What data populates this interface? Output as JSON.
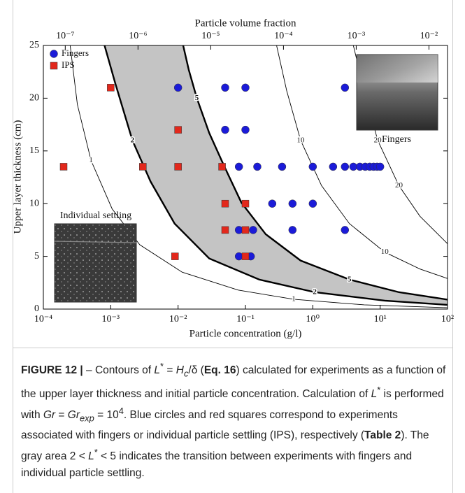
{
  "chart_data": {
    "type": "scatter",
    "x_label": "Particle concentration (g/l)",
    "y_label": "Upper layer thickness (cm)",
    "x2_label": "Particle volume fraction",
    "xscale": "log",
    "xlim": [
      0.0001,
      100
    ],
    "xticks": [
      {
        "value": 0.0001,
        "label": "10⁻⁴"
      },
      {
        "value": 0.001,
        "label": "10⁻³"
      },
      {
        "value": 0.01,
        "label": "10⁻²"
      },
      {
        "value": 0.1,
        "label": "10⁻¹"
      },
      {
        "value": 1,
        "label": "10⁰"
      },
      {
        "value": 10,
        "label": "10¹"
      },
      {
        "value": 100,
        "label": "10²"
      }
    ],
    "x2scale": "log",
    "x2lim": [
      5e-08,
      0.018
    ],
    "x2ticks": [
      {
        "value": 1e-07,
        "label": "10⁻⁷"
      },
      {
        "value": 1e-06,
        "label": "10⁻⁶"
      },
      {
        "value": 1e-05,
        "label": "10⁻⁵"
      },
      {
        "value": 0.0001,
        "label": "10⁻⁴"
      },
      {
        "value": 0.001,
        "label": "10⁻³"
      },
      {
        "value": 0.01,
        "label": "10⁻²"
      }
    ],
    "ylim": [
      0,
      25
    ],
    "yticks": [
      0,
      5,
      10,
      15,
      20,
      25
    ],
    "grid": false,
    "legend": "upper left",
    "series": [
      {
        "name": "Fingers",
        "color": "#1b1bd8",
        "marker": "circle",
        "x": [
          0.01,
          0.05,
          0.1,
          3,
          0.05,
          0.1,
          0.08,
          0.15,
          0.35,
          1,
          2,
          3,
          4,
          5,
          6,
          7,
          8,
          9,
          10,
          0.25,
          0.5,
          1,
          0.08,
          0.13,
          0.5,
          3,
          0.08,
          0.12
        ],
        "values": [
          21,
          21,
          21,
          21,
          17,
          17,
          13.5,
          13.5,
          13.5,
          13.5,
          13.5,
          13.5,
          13.5,
          13.5,
          13.5,
          13.5,
          13.5,
          13.5,
          13.5,
          10,
          10,
          10,
          7.5,
          7.5,
          7.5,
          7.5,
          5,
          5
        ]
      },
      {
        "name": "IPS",
        "color": "#e2281c",
        "marker": "square",
        "x": [
          0.001,
          0.01,
          0.0002,
          0.003,
          0.01,
          0.045,
          0.05,
          0.1,
          0.05,
          0.1,
          0.009,
          0.1
        ],
        "values": [
          21,
          17,
          13.5,
          13.5,
          13.5,
          13.5,
          10,
          10,
          7.5,
          7.5,
          5,
          5
        ]
      }
    ],
    "contours": [
      {
        "label": "1",
        "bold": false,
        "x": [
          0.00025,
          0.00032,
          0.00051,
          0.00105,
          0.0027,
          0.0115,
          0.078,
          0.52,
          5.8,
          100
        ],
        "y": [
          25,
          19.4,
          14.1,
          9.5,
          6.1,
          3.5,
          1.8,
          0.93,
          0.4,
          0.13
        ]
      },
      {
        "label": "2",
        "bold": true,
        "x": [
          0.00081,
          0.00117,
          0.0021,
          0.0039,
          0.0089,
          0.029,
          0.16,
          1.07,
          11.7,
          100
        ],
        "y": [
          25,
          21.4,
          16,
          12.1,
          8.1,
          4.8,
          2.8,
          1.6,
          0.8,
          0.4
        ]
      },
      {
        "label": "5",
        "bold": true,
        "x": [
          0.0119,
          0.0144,
          0.019,
          0.029,
          0.048,
          0.087,
          0.2,
          0.66,
          3.5,
          19,
          100
        ],
        "y": [
          25,
          22.7,
          20,
          16.7,
          13.6,
          10.1,
          7.1,
          4.6,
          2.8,
          1.6,
          0.9
        ]
      },
      {
        "label": "10",
        "bold": false,
        "x": [
          0.29,
          0.41,
          0.66,
          1.35,
          3.5,
          11.7,
          39,
          100
        ],
        "y": [
          25,
          20.7,
          16,
          11.7,
          8.1,
          5.4,
          3.8,
          2.9
        ]
      },
      {
        "label": "20",
        "bold": false,
        "x": [
          4,
          5.8,
          9.2,
          19,
          39,
          100
        ],
        "y": [
          25,
          20.7,
          16,
          11.7,
          8.8,
          6.2
        ]
      }
    ],
    "shade_color": "#c4c4c4",
    "insets": [
      {
        "caption": "Fingers"
      },
      {
        "caption": "Individual settling"
      }
    ]
  },
  "caption": [
    "FIGURE 12 |",
    " – Contours of ",
    "L",
    "*",
    " = ",
    "H",
    "c",
    "/δ (",
    "Eq. 16",
    ") calculated for experiments as a function of the upper layer thickness and initial particle concentration. Calculation of ",
    "L",
    "*",
    " is performed with ",
    "Gr",
    " = ",
    "Gr",
    "exp",
    " = 10",
    "4",
    ". Blue circles and red squares correspond to experiments associated with fingers or individual particle settling (IPS), respectively (",
    "Table 2",
    "). The gray area 2 < ",
    "L",
    "*",
    " < 5 indicates the transition between experiments with fingers and individual particle settling."
  ]
}
